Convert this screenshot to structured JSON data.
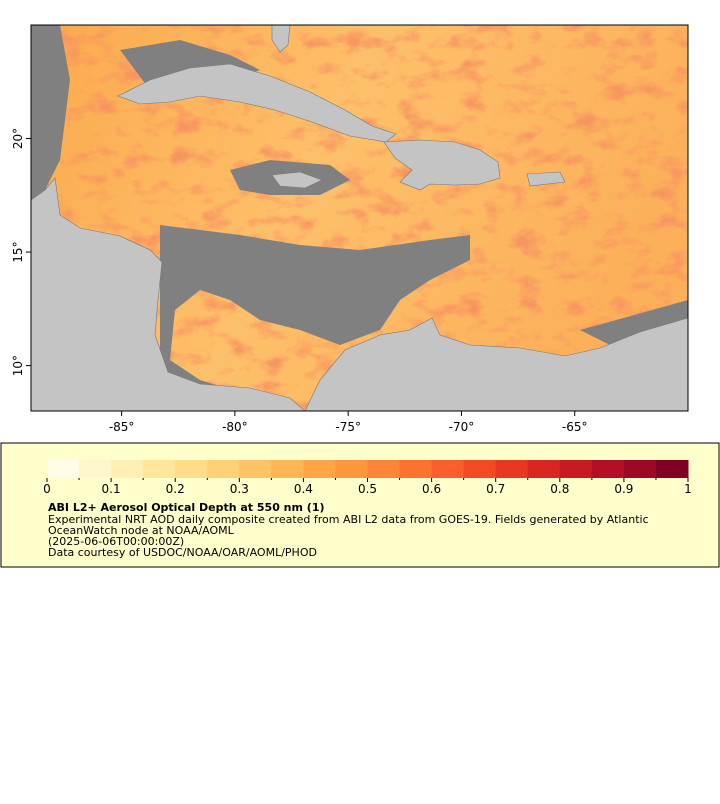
{
  "map": {
    "xlim": [
      -89,
      -60
    ],
    "ylim": [
      8,
      25
    ],
    "xticks": [
      {
        "value": -85,
        "label": "-85°"
      },
      {
        "value": -80,
        "label": "-80°"
      },
      {
        "value": -75,
        "label": "-75°"
      },
      {
        "value": -70,
        "label": "-70°"
      },
      {
        "value": -65,
        "label": "-65°"
      }
    ],
    "yticks": [
      {
        "value": 10,
        "label": "10°"
      },
      {
        "value": 15,
        "label": "15°"
      },
      {
        "value": 20,
        "label": "20°"
      }
    ]
  },
  "legend": {
    "range": [
      0,
      1
    ],
    "ticks": [
      0,
      0.1,
      0.2,
      0.3,
      0.4,
      0.5,
      0.6,
      0.7,
      0.8,
      0.9,
      1
    ],
    "colors": [
      "#fffde6",
      "#fff6cc",
      "#ffefb3",
      "#ffe69c",
      "#fedc88",
      "#fed176",
      "#fec364",
      "#feb553",
      "#fea647",
      "#fd973e",
      "#fd8535",
      "#fc722f",
      "#fa5e2a",
      "#f24a25",
      "#e83722",
      "#da2621",
      "#c81a22",
      "#b40f25",
      "#9d0826",
      "#800026"
    ],
    "title": "ABI L2+ Aerosol Optical Depth at 550 nm (1)",
    "lines": [
      "Experimental NRT AOD daily composite created from ABI L2 data from GOES-19. Fields generated by Atlantic",
      "OceanWatch node at NOAA/AOML",
      "(2025-06-06T00:00:00Z)",
      "Data courtesy of USDOC/NOAA/OAR/AOML/PHOD"
    ]
  }
}
